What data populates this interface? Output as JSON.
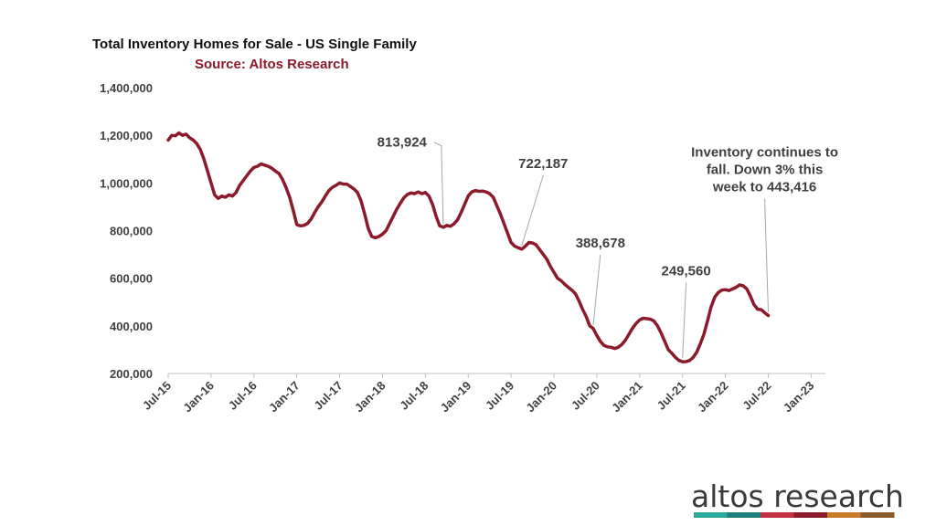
{
  "chart_data": {
    "type": "line",
    "title": "Total Inventory Homes for Sale - US Single Family",
    "subtitle": "Source: Altos Research",
    "xlabel": "",
    "ylabel": "",
    "ylim": [
      200000,
      1400000
    ],
    "yticks": [
      "200,000",
      "400,000",
      "600,000",
      "800,000",
      "1,000,000",
      "1,200,000",
      "1,400,000"
    ],
    "ytick_values": [
      200000,
      400000,
      600000,
      800000,
      1000000,
      1200000,
      1400000
    ],
    "xticks": [
      "Jul-15",
      "Jan-16",
      "Jul-16",
      "Jan-17",
      "Jul-17",
      "Jan-18",
      "Jul-18",
      "Jan-19",
      "Jul-19",
      "Jan-20",
      "Jul-20",
      "Jan-21",
      "Jul-21",
      "Jan-22",
      "Jul-22",
      "Jan-23"
    ],
    "xrange_months": [
      0,
      92
    ],
    "colors": {
      "line": "#8b1a2b",
      "subtitle": "#8b1a2b",
      "axis": "#bfbfbf",
      "text": "#404040"
    },
    "series": [
      {
        "name": "Total Inventory",
        "points": [
          [
            0,
            1180000
          ],
          [
            0.5,
            1200000
          ],
          [
            1,
            1198000
          ],
          [
            1.5,
            1210000
          ],
          [
            2,
            1200000
          ],
          [
            2.5,
            1205000
          ],
          [
            3,
            1190000
          ],
          [
            3.5,
            1180000
          ],
          [
            4,
            1165000
          ],
          [
            4.5,
            1140000
          ],
          [
            5,
            1100000
          ],
          [
            5.5,
            1050000
          ],
          [
            6,
            1000000
          ],
          [
            6.5,
            950000
          ],
          [
            7,
            935000
          ],
          [
            7.5,
            945000
          ],
          [
            8,
            940000
          ],
          [
            8.5,
            950000
          ],
          [
            9,
            945000
          ],
          [
            9.5,
            960000
          ],
          [
            10,
            990000
          ],
          [
            10.5,
            1010000
          ],
          [
            11,
            1030000
          ],
          [
            11.5,
            1050000
          ],
          [
            12,
            1065000
          ],
          [
            12.5,
            1070000
          ],
          [
            13,
            1080000
          ],
          [
            13.5,
            1075000
          ],
          [
            14,
            1070000
          ],
          [
            14.5,
            1062000
          ],
          [
            15,
            1050000
          ],
          [
            15.5,
            1040000
          ],
          [
            16,
            1015000
          ],
          [
            16.5,
            980000
          ],
          [
            17,
            940000
          ],
          [
            17.5,
            885000
          ],
          [
            18,
            825000
          ],
          [
            18.5,
            820000
          ],
          [
            19,
            822000
          ],
          [
            19.5,
            830000
          ],
          [
            20,
            848000
          ],
          [
            20.5,
            875000
          ],
          [
            21,
            900000
          ],
          [
            21.5,
            920000
          ],
          [
            22,
            945000
          ],
          [
            22.5,
            968000
          ],
          [
            23,
            982000
          ],
          [
            23.5,
            990000
          ],
          [
            24,
            1000000
          ],
          [
            24.5,
            995000
          ],
          [
            25,
            995000
          ],
          [
            25.5,
            985000
          ],
          [
            26,
            975000
          ],
          [
            26.5,
            960000
          ],
          [
            27,
            925000
          ],
          [
            27.5,
            870000
          ],
          [
            28,
            810000
          ],
          [
            28.5,
            775000
          ],
          [
            29,
            770000
          ],
          [
            29.5,
            775000
          ],
          [
            30,
            785000
          ],
          [
            30.5,
            800000
          ],
          [
            31,
            830000
          ],
          [
            31.5,
            860000
          ],
          [
            32,
            890000
          ],
          [
            32.5,
            915000
          ],
          [
            33,
            938000
          ],
          [
            33.5,
            952000
          ],
          [
            34,
            958000
          ],
          [
            34.5,
            955000
          ],
          [
            35,
            962000
          ],
          [
            35.5,
            955000
          ],
          [
            36,
            960000
          ],
          [
            36.5,
            945000
          ],
          [
            37,
            910000
          ],
          [
            37.5,
            860000
          ],
          [
            38,
            820000
          ],
          [
            38.5,
            813924
          ],
          [
            39,
            822000
          ],
          [
            39.5,
            818000
          ],
          [
            40,
            828000
          ],
          [
            40.5,
            845000
          ],
          [
            41,
            875000
          ],
          [
            41.5,
            910000
          ],
          [
            42,
            945000
          ],
          [
            42.5,
            962000
          ],
          [
            43,
            968000
          ],
          [
            43.5,
            965000
          ],
          [
            44,
            966000
          ],
          [
            44.5,
            962000
          ],
          [
            45,
            955000
          ],
          [
            45.5,
            940000
          ],
          [
            46,
            905000
          ],
          [
            46.5,
            870000
          ],
          [
            47,
            830000
          ],
          [
            47.5,
            790000
          ],
          [
            48,
            750000
          ],
          [
            48.5,
            735000
          ],
          [
            49,
            728000
          ],
          [
            49.5,
            722187
          ],
          [
            50,
            735000
          ],
          [
            50.5,
            750000
          ],
          [
            51,
            748000
          ],
          [
            51.5,
            740000
          ],
          [
            52,
            720000
          ],
          [
            52.5,
            700000
          ],
          [
            53,
            680000
          ],
          [
            53.5,
            650000
          ],
          [
            54,
            625000
          ],
          [
            54.5,
            600000
          ],
          [
            55,
            590000
          ],
          [
            55.5,
            575000
          ],
          [
            56,
            562000
          ],
          [
            56.5,
            550000
          ],
          [
            57,
            535000
          ],
          [
            57.5,
            505000
          ],
          [
            58,
            470000
          ],
          [
            58.5,
            440000
          ],
          [
            59,
            400000
          ],
          [
            59.5,
            388678
          ],
          [
            60,
            360000
          ],
          [
            60.5,
            335000
          ],
          [
            61,
            318000
          ],
          [
            61.5,
            312000
          ],
          [
            62,
            310000
          ],
          [
            62.5,
            305000
          ],
          [
            63,
            310000
          ],
          [
            63.5,
            322000
          ],
          [
            64,
            340000
          ],
          [
            64.5,
            365000
          ],
          [
            65,
            390000
          ],
          [
            65.5,
            410000
          ],
          [
            66,
            425000
          ],
          [
            66.5,
            432000
          ],
          [
            67,
            430000
          ],
          [
            67.5,
            428000
          ],
          [
            68,
            420000
          ],
          [
            68.5,
            400000
          ],
          [
            69,
            370000
          ],
          [
            69.5,
            335000
          ],
          [
            70,
            300000
          ],
          [
            70.5,
            285000
          ],
          [
            71,
            268000
          ],
          [
            71.5,
            255000
          ],
          [
            72,
            249560
          ],
          [
            72.5,
            250000
          ],
          [
            73,
            255000
          ],
          [
            73.5,
            268000
          ],
          [
            74,
            290000
          ],
          [
            74.5,
            325000
          ],
          [
            75,
            365000
          ],
          [
            75.5,
            420000
          ],
          [
            76,
            480000
          ],
          [
            76.5,
            520000
          ],
          [
            77,
            540000
          ],
          [
            77.5,
            550000
          ],
          [
            78,
            552000
          ],
          [
            78.5,
            548000
          ],
          [
            79,
            555000
          ],
          [
            79.5,
            562000
          ],
          [
            80,
            572000
          ],
          [
            80.5,
            568000
          ],
          [
            81,
            555000
          ],
          [
            81.5,
            525000
          ],
          [
            82,
            490000
          ],
          [
            82.5,
            470000
          ],
          [
            83,
            468000
          ],
          [
            83.5,
            455000
          ],
          [
            84,
            443416
          ]
        ]
      }
    ],
    "annotations": [
      {
        "lines": [
          "813,924"
        ],
        "point_month": 38.5,
        "point_value": 813924,
        "text_month": 36.2,
        "text_value": 1152000,
        "anchor": "end"
      },
      {
        "lines": [
          "722,187"
        ],
        "point_month": 49.5,
        "point_value": 722187,
        "text_month": 52.5,
        "text_value": 1062000,
        "anchor": "middle"
      },
      {
        "lines": [
          "388,678"
        ],
        "point_month": 59.5,
        "point_value": 388678,
        "text_month": 60.5,
        "text_value": 730000,
        "anchor": "middle"
      },
      {
        "lines": [
          "249,560"
        ],
        "point_month": 72.0,
        "point_value": 249560,
        "text_month": 72.5,
        "text_value": 612000,
        "anchor": "middle"
      },
      {
        "lines": [
          "Inventory continues to",
          "fall. Down 3% this",
          "week to 443,416"
        ],
        "point_month": 84.0,
        "point_value": 443416,
        "text_month": 83.5,
        "text_value": 1110000,
        "anchor": "middle"
      }
    ]
  },
  "logo": {
    "text": "altos research",
    "stripe_colors": [
      "#2aa89a",
      "#1f7f7a",
      "#c0323f",
      "#8b1a2b",
      "#c77c2a",
      "#8a5a2b"
    ]
  }
}
